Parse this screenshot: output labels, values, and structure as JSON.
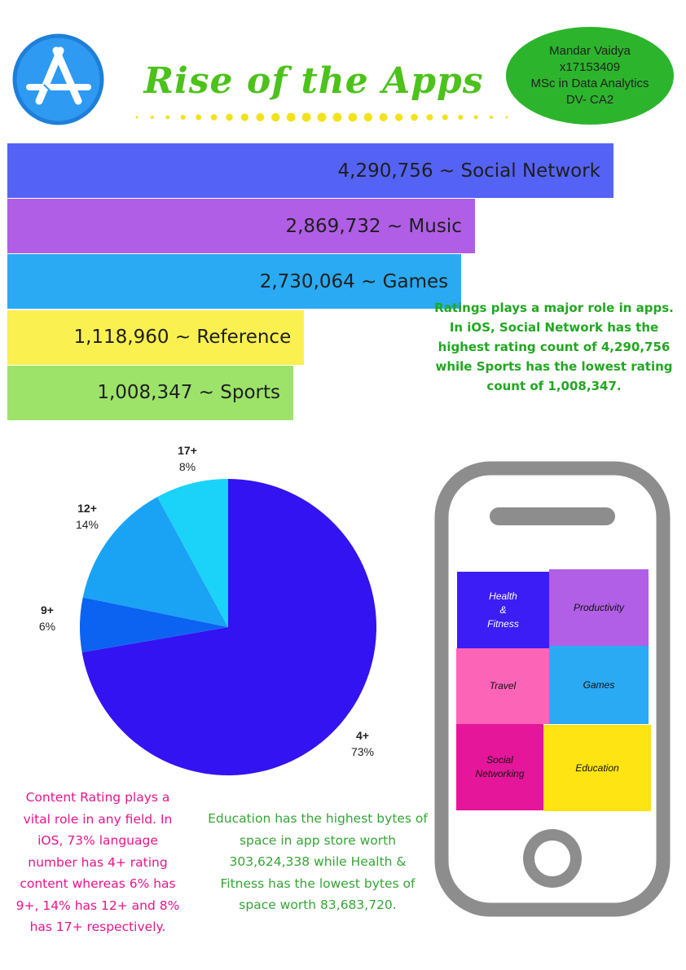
{
  "header": {
    "title": "Rise of the Apps",
    "author": [
      "Mandar Vaidya",
      "x17153409",
      "MSc in Data Analytics",
      "DV- CA2"
    ]
  },
  "colors": {
    "title_green": "#4cc21b",
    "author_bg": "#2cb52c",
    "dots_yellow": "#f2e21c",
    "pie_4plus": "#3313f2",
    "pie_9plus": "#0c63f2",
    "pie_12plus": "#1aa3f4",
    "pie_17plus": "#1bd3f8",
    "phone_gray": "#8d8d8d"
  },
  "chart_data": [
    {
      "type": "bar",
      "orientation": "horizontal",
      "categories": [
        "Social Network",
        "Music",
        "Games",
        "Reference",
        "Sports"
      ],
      "values": [
        4290756,
        2869732,
        2730064,
        1118960,
        1008347
      ],
      "labels": [
        "4,290,756 ~ Social Network",
        "2,869,732 ~ Music",
        "2,730,064 ~ Games",
        "1,118,960 ~ Reference",
        "1,008,347 ~ Sports"
      ],
      "colors": [
        "#5463f5",
        "#b05ee6",
        "#2aaaf3",
        "#faf04f",
        "#9de36a"
      ]
    },
    {
      "type": "pie",
      "categories": [
        "4+",
        "9+",
        "12+",
        "17+"
      ],
      "values": [
        73,
        6,
        14,
        8
      ],
      "percent_labels": [
        "73%",
        "6%",
        "14%",
        "8%"
      ]
    }
  ],
  "notes": {
    "ratings": "Ratings plays a major role in apps. In iOS, Social Network has the highest rating count of 4,290,756 while Sports has the lowest rating count of 1,008,347.",
    "content_rating": "Content Rating plays a vital role in any field. In iOS, 73% language number has 4+ rating content whereas 6% has 9+, 14% has 12+ and 8% has 17+ respectively.",
    "education": "Education has the highest bytes of space in app store worth 303,624,338 while Health & Fitness has the lowest bytes of space worth 83,683,720."
  },
  "phone_tiles": [
    {
      "label": "Health\n&\nFitness",
      "color": "#3d1df5"
    },
    {
      "label": "Productivity",
      "color": "#b15fe6"
    },
    {
      "label": "Travel",
      "color": "#fc64b8"
    },
    {
      "label": "Games",
      "color": "#2aaaf3"
    },
    {
      "label": "Social\nNetworking",
      "color": "#e6169a"
    },
    {
      "label": "Education",
      "color": "#fde412"
    }
  ]
}
